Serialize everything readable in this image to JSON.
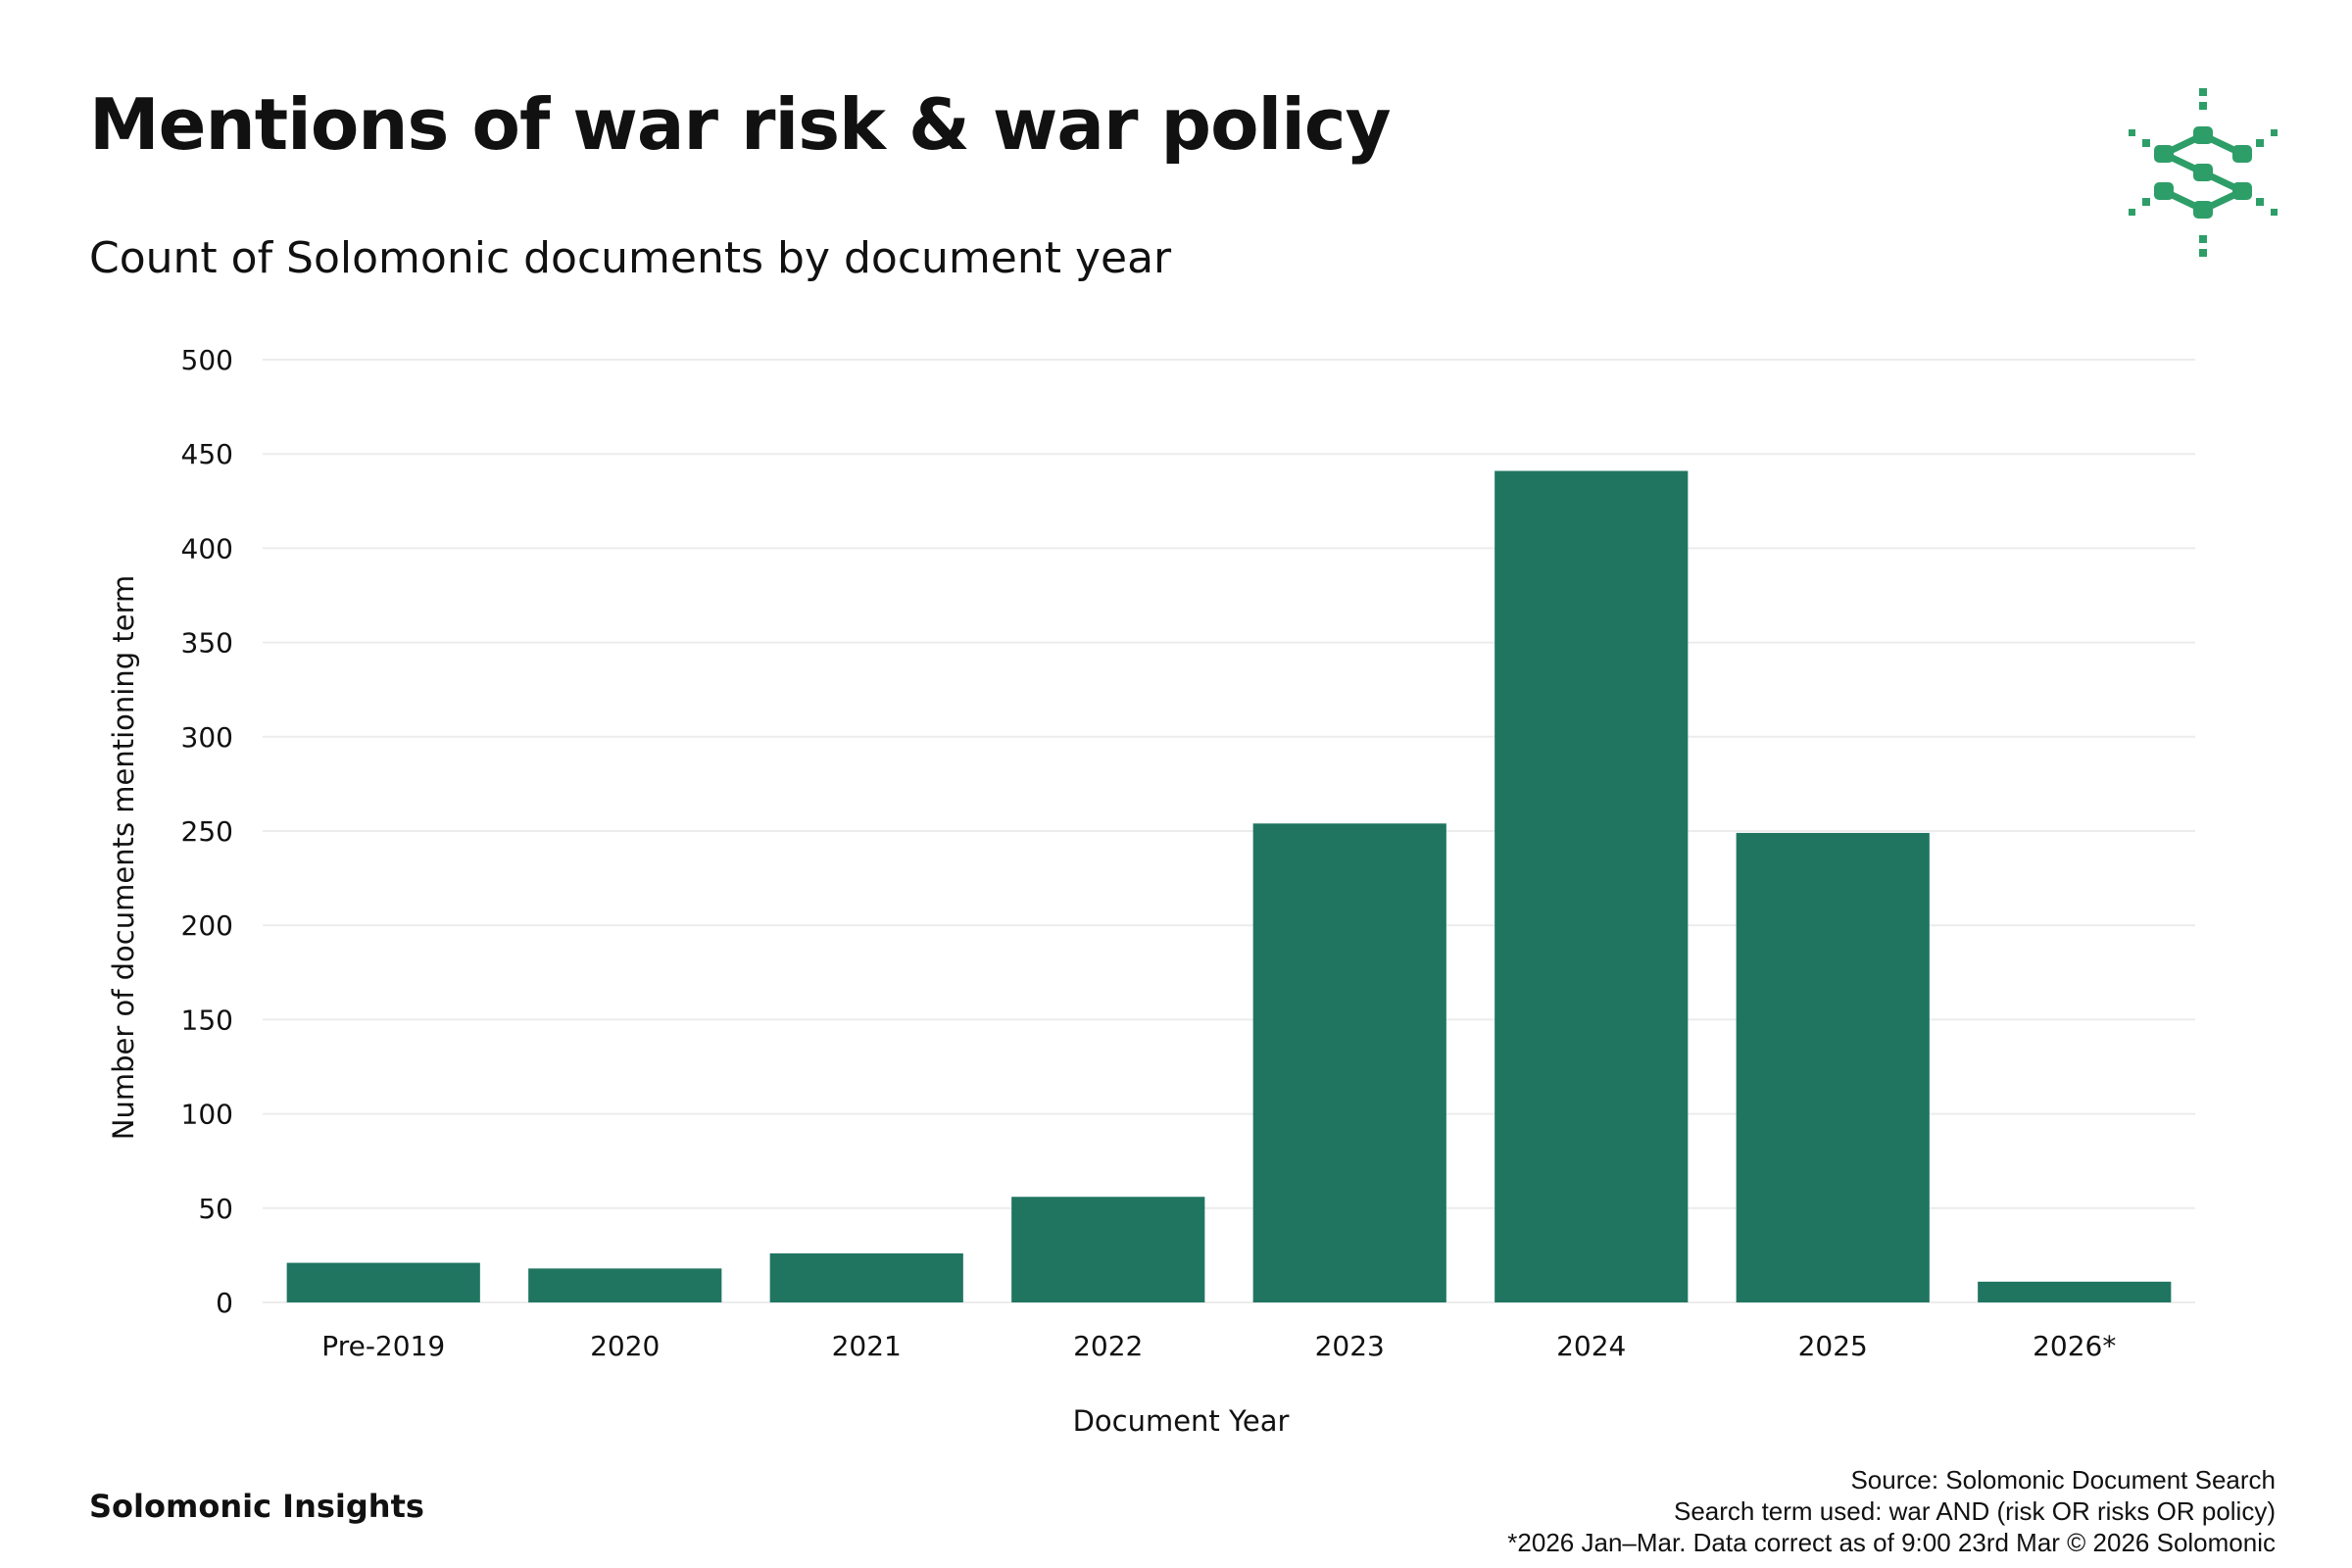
{
  "header": {
    "title": "Mentions of war risk & war policy",
    "subtitle": "Count of Solomonic documents by document year"
  },
  "logo": {
    "icon": "solomonic-logo-icon",
    "color": "#2e9e68"
  },
  "colors": {
    "bar": "#207561",
    "grid": "#ececec",
    "text": "#111111"
  },
  "chart_data": {
    "type": "bar",
    "title": "Mentions of war risk & war policy",
    "subtitle": "Count of Solomonic documents by document year",
    "xlabel": "Document Year",
    "ylabel": "Number of documents mentioning term",
    "categories": [
      "Pre-2019",
      "2020",
      "2021",
      "2022",
      "2023",
      "2024",
      "2025",
      "2026*"
    ],
    "values": [
      21,
      18,
      26,
      56,
      254,
      441,
      249,
      11
    ],
    "ylim": [
      0,
      500
    ],
    "yticks": [
      0,
      50,
      100,
      150,
      200,
      250,
      300,
      350,
      400,
      450,
      500
    ],
    "grid": true,
    "legend": "none"
  },
  "footer": {
    "brand": "Solomonic Insights",
    "source": "Source: Solomonic Document Search",
    "search_term": "Search term used: war AND (risk OR risks OR policy)",
    "note": "*2026 Jan–Mar. Data correct as of 9:00 23rd Mar © 2026 Solomonic"
  }
}
